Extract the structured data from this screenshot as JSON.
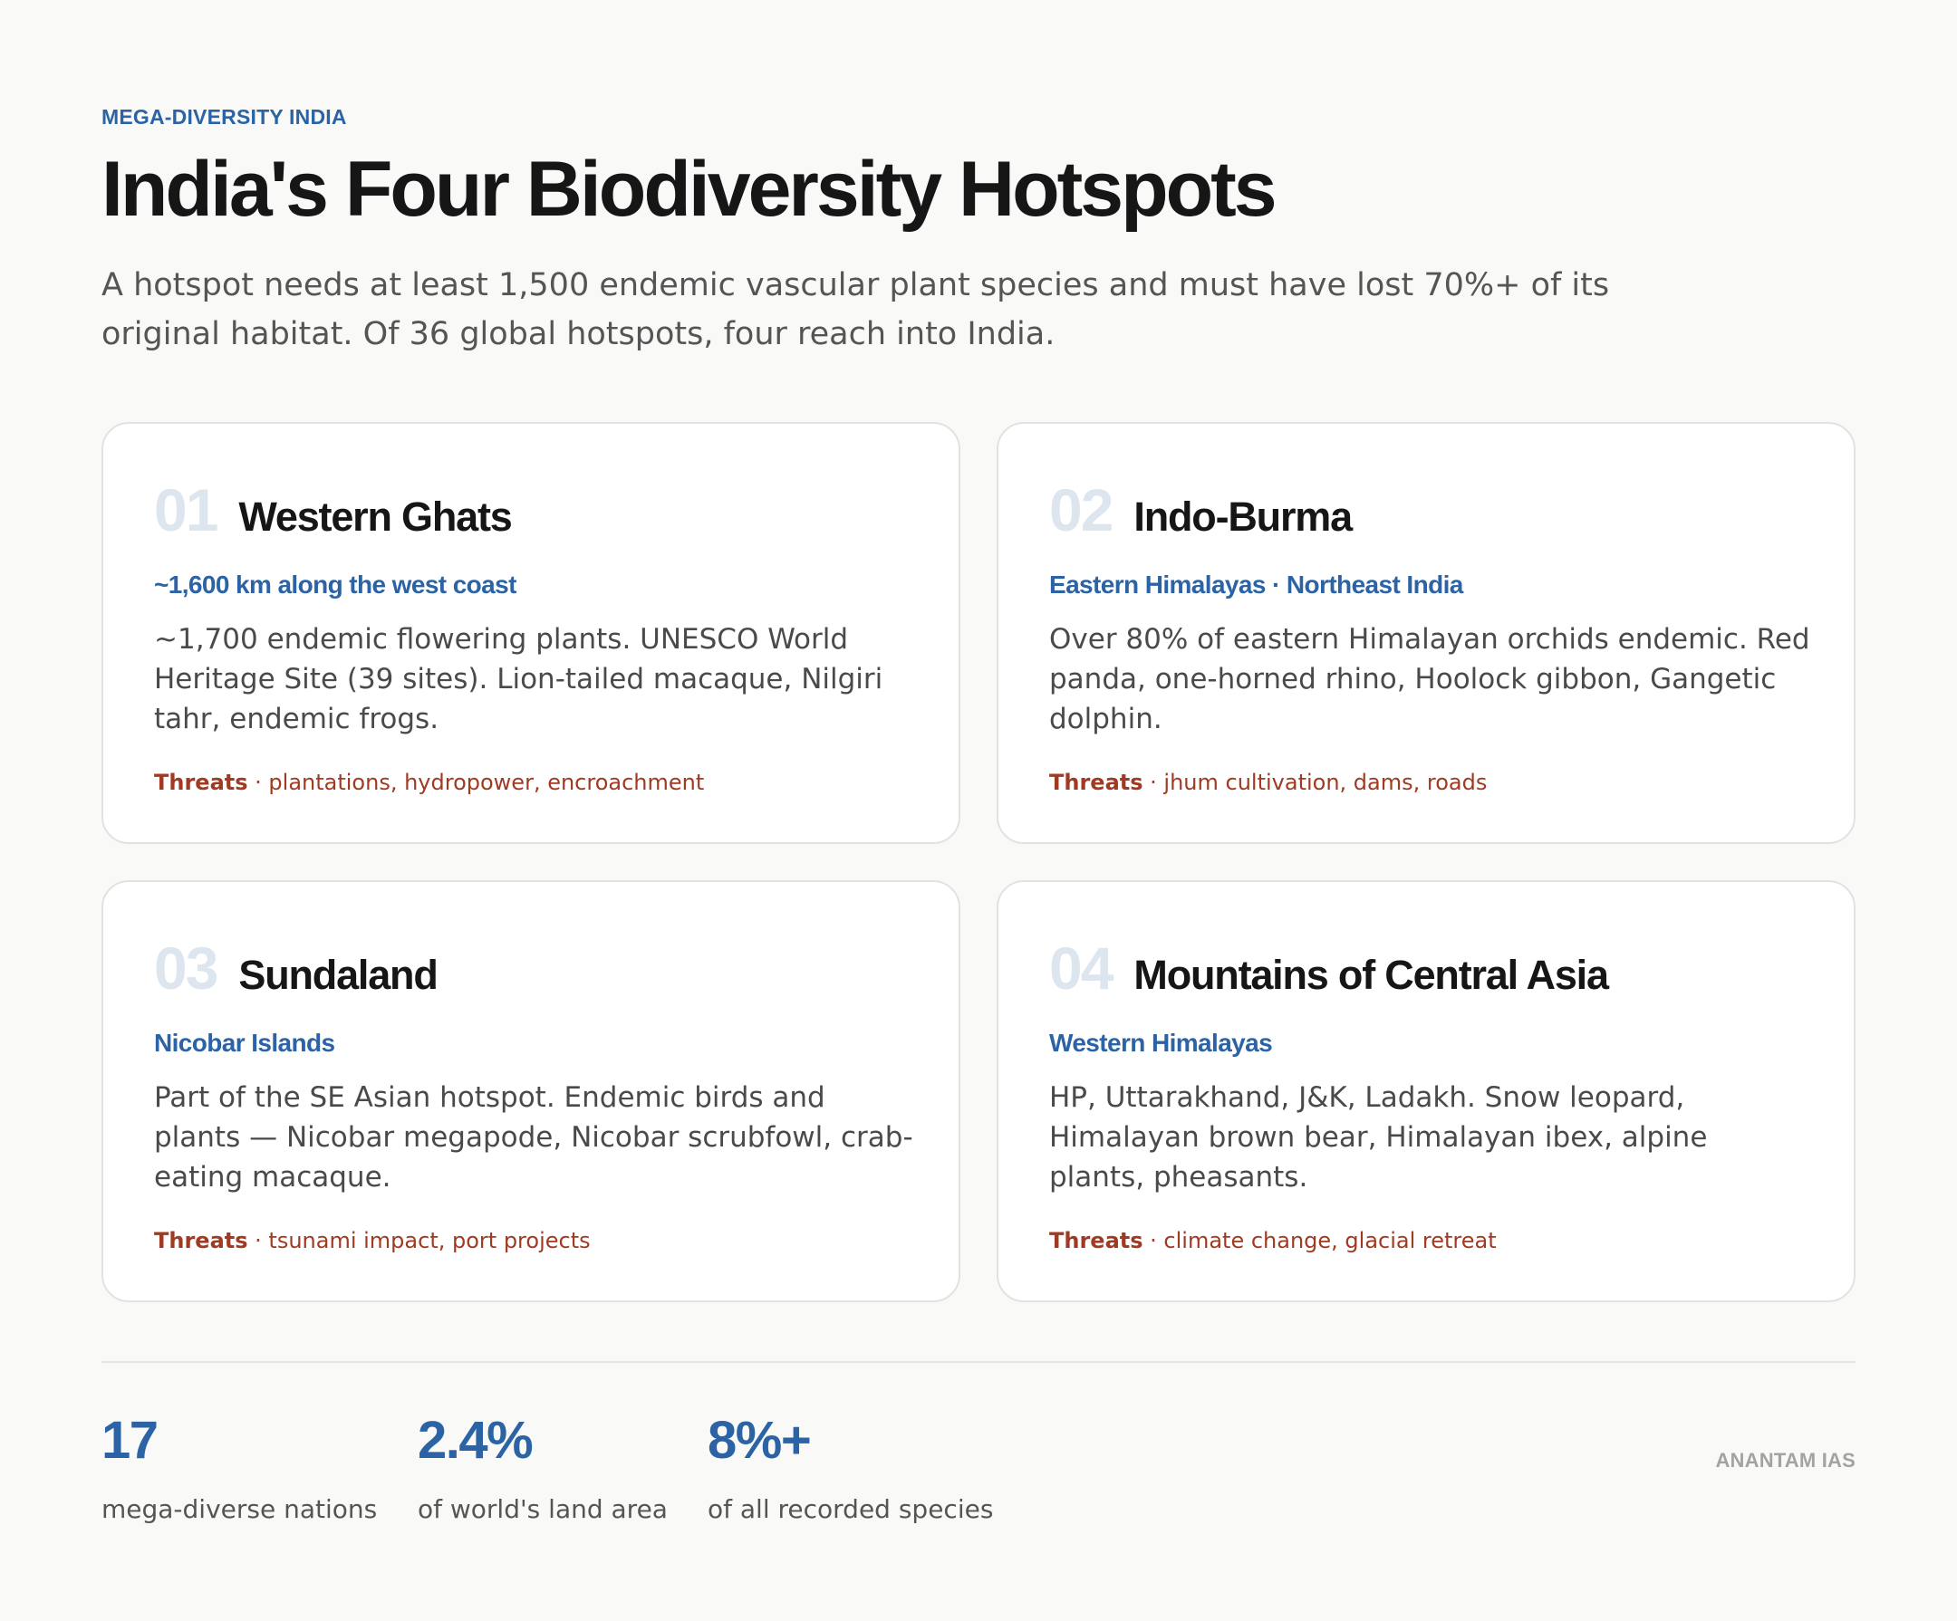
{
  "header": {
    "eyebrow": "MEGA-DIVERSITY INDIA",
    "title": "India's Four Biodiversity Hotspots",
    "subtitle": "A hotspot needs at least 1,500 endemic vascular plant species and must have lost 70%+ of its original habitat. Of 36 global hotspots, four reach into India."
  },
  "cards": [
    {
      "number": "01",
      "title": "Western Ghats",
      "region": "~1,600 km along the west coast",
      "description": "~1,700 endemic flowering plants. UNESCO World Heritage Site (39 sites). Lion-tailed macaque, Nilgiri tahr, endemic frogs.",
      "threats_label": "Threats",
      "threats": " · plantations, hydropower, encroachment"
    },
    {
      "number": "02",
      "title": "Indo-Burma",
      "region": "Eastern Himalayas · Northeast India",
      "description": "Over 80% of eastern Himalayan orchids endemic. Red panda, one-horned rhino, Hoolock gibbon, Gangetic dolphin.",
      "threats_label": "Threats",
      "threats": " · jhum cultivation, dams, roads"
    },
    {
      "number": "03",
      "title": "Sundaland",
      "region": "Nicobar Islands",
      "description": "Part of the SE Asian hotspot. Endemic birds and plants — Nicobar megapode, Nicobar scrubfowl, crab-eating macaque.",
      "threats_label": "Threats",
      "threats": " · tsunami impact, port projects"
    },
    {
      "number": "04",
      "title": "Mountains of Central Asia",
      "region": "Western Himalayas",
      "description": "HP, Uttarakhand, J&K, Ladakh. Snow leopard, Himalayan brown bear, Himalayan ibex, alpine plants, pheasants.",
      "threats_label": "Threats",
      "threats": " · climate change, glacial retreat"
    }
  ],
  "stats": [
    {
      "value": "17",
      "label": "mega-diverse nations"
    },
    {
      "value": "2.4%",
      "label": "of world's land area"
    },
    {
      "value": "8%+",
      "label": "of all recorded species"
    }
  ],
  "footer": {
    "brand": "ANANTAM IAS"
  },
  "colors": {
    "accent": "#2c63a5",
    "threat": "#a13a22",
    "number_faded": "#dde6ef",
    "background": "#f9f9f7",
    "card": "#ffffff"
  }
}
